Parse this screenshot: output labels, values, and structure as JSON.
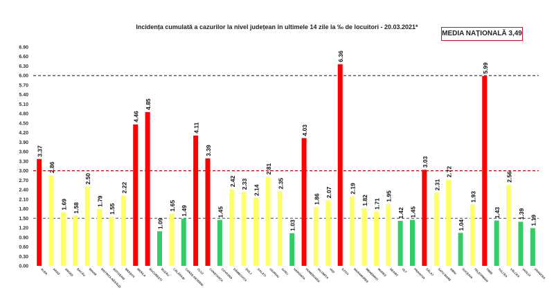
{
  "chart_data": {
    "type": "bar",
    "title": "Incidența cumulată a cazurilor la nivel județean în ultimele 14 zile la ‰ de locuitori - 20.03.2021*",
    "national_average_label": "MEDIA NAȚIONALĂ 3,49",
    "xlabel": "",
    "ylabel": "",
    "ylim": [
      0,
      6.9
    ],
    "yticks": [
      "0.00",
      "0.30",
      "0.60",
      "0.90",
      "1.20",
      "1.50",
      "1.80",
      "2.10",
      "2.40",
      "2.70",
      "3.00",
      "3.30",
      "3.60",
      "3.90",
      "4.20",
      "4.50",
      "4.80",
      "5.10",
      "5.40",
      "5.70",
      "6.00",
      "6.30",
      "6.60",
      "6.90"
    ],
    "grid": false,
    "thresholds": [
      {
        "value": 6.0,
        "color": "#404040"
      },
      {
        "value": 3.0,
        "color": "#c00000"
      },
      {
        "value": 1.5,
        "color": "#1f6fa3"
      }
    ],
    "categories": [
      "ALBA",
      "ARAD",
      "ARGEȘ",
      "BACĂU",
      "BIHOR",
      "BISTRIȚA-NĂSĂUD",
      "BOTOȘANI",
      "BRAȘOV",
      "BRĂILA",
      "BUCUREȘTI",
      "BUZĂU",
      "CĂLĂRAȘI",
      "CARAȘ-SEVERIN",
      "CLUJ",
      "CONSTANȚA",
      "COVASNA",
      "DÂMBOVIȚA",
      "DOLJ",
      "GALAȚI",
      "GIURGIU",
      "GORJ",
      "HARGHITA",
      "HUNEDOARA",
      "IALOMIȚA",
      "IAȘI",
      "ILFOV",
      "MARAMUREȘ",
      "MEHEDINȚI",
      "MUREȘ",
      "NEAMȚ",
      "OLT",
      "PRAHOVA",
      "SĂLAJ",
      "SATU MARE",
      "SIBIU",
      "SUCEAVA",
      "TELEORMAN",
      "TIMIȘ",
      "TULCEA",
      "VÂLCEA",
      "VASLUI",
      "VRANCEA"
    ],
    "values": [
      3.37,
      2.86,
      1.69,
      1.58,
      2.5,
      1.79,
      1.55,
      2.22,
      4.46,
      4.85,
      1.09,
      1.65,
      1.49,
      4.11,
      3.39,
      1.45,
      2.42,
      2.33,
      2.14,
      2.81,
      2.35,
      1.03,
      4.03,
      1.86,
      2.07,
      6.36,
      2.19,
      1.82,
      1.71,
      1.95,
      1.42,
      1.45,
      3.03,
      2.31,
      2.72,
      1.04,
      1.93,
      5.99,
      1.43,
      2.56,
      1.39,
      1.19
    ],
    "value_labels": [
      "3.37",
      "2.86",
      "1.69",
      "1.58",
      "2.50",
      "1.79",
      "1.55",
      "2.22",
      "4.46",
      "4.85",
      "1.09",
      "1.65",
      "1.49",
      "4.11",
      "3.39",
      "1.45",
      "2.42",
      "2.33",
      "2.14",
      "2.81",
      "2.35",
      "1.03",
      "4.03",
      "1.86",
      "2.07",
      "6.36",
      "2.19",
      "1.82",
      "1.71",
      "1.95",
      "1.42",
      "1.45",
      "3.03",
      "2.31",
      "2.72",
      "1.04",
      "1.93",
      "5.99",
      "1.43",
      "2.56",
      "1.39",
      "1.19"
    ],
    "colors": {
      "red": "#ff0000",
      "yellow": "#ffff66",
      "green": "#33cc66"
    },
    "bar_colors": [
      "red",
      "yellow",
      "yellow",
      "yellow",
      "yellow",
      "yellow",
      "yellow",
      "yellow",
      "red",
      "red",
      "green",
      "yellow",
      "green",
      "red",
      "red",
      "green",
      "yellow",
      "yellow",
      "yellow",
      "yellow",
      "yellow",
      "green",
      "red",
      "yellow",
      "yellow",
      "red",
      "yellow",
      "yellow",
      "yellow",
      "yellow",
      "green",
      "green",
      "red",
      "yellow",
      "yellow",
      "green",
      "yellow",
      "red",
      "green",
      "yellow",
      "green",
      "green"
    ]
  }
}
